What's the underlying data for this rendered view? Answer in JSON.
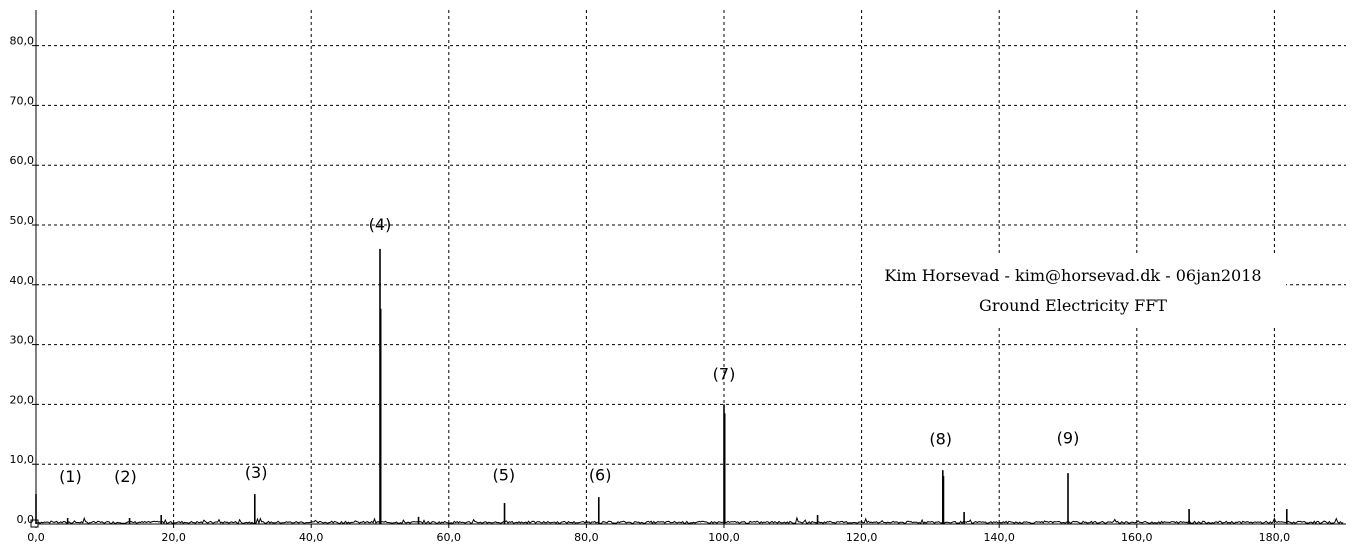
{
  "chart_data": {
    "type": "line",
    "title": "",
    "xlabel": "",
    "ylabel": "",
    "xlim": [
      0,
      190
    ],
    "ylim": [
      0,
      85
    ],
    "grid": true,
    "x_ticks": [
      0,
      20,
      40,
      60,
      80,
      100,
      120,
      140,
      160,
      180
    ],
    "y_ticks": [
      0,
      10,
      20,
      30,
      40,
      50,
      60,
      70,
      80
    ],
    "x_tick_labels": [
      "0,0",
      "20,0",
      "40,0",
      "60,0",
      "80,0",
      "100,0",
      "120,0",
      "140,0",
      "160,0",
      "180,0"
    ],
    "y_tick_labels": [
      "0,0",
      "10,0",
      "20,0",
      "30,0",
      "40,0",
      "50,0",
      "60,0",
      "70,0",
      "80,0"
    ],
    "spikes": [
      {
        "x": 0.0,
        "y": 5.0
      },
      {
        "x": 4.6,
        "y": 1.0
      },
      {
        "x": 13.6,
        "y": 1.0
      },
      {
        "x": 18.2,
        "y": 1.5
      },
      {
        "x": 31.8,
        "y": 5.0
      },
      {
        "x": 50.0,
        "y": 46.0
      },
      {
        "x": 50.1,
        "y": 36.0
      },
      {
        "x": 55.6,
        "y": 1.2
      },
      {
        "x": 68.1,
        "y": 3.5
      },
      {
        "x": 81.8,
        "y": 4.5
      },
      {
        "x": 100.0,
        "y": 20.0
      },
      {
        "x": 100.1,
        "y": 18.5
      },
      {
        "x": 113.6,
        "y": 1.5
      },
      {
        "x": 131.8,
        "y": 9.0
      },
      {
        "x": 131.9,
        "y": 8.0
      },
      {
        "x": 134.9,
        "y": 2.0
      },
      {
        "x": 150.0,
        "y": 8.5
      },
      {
        "x": 167.6,
        "y": 2.5
      },
      {
        "x": 181.8,
        "y": 2.5
      }
    ],
    "annotations": [
      {
        "label": "(1)",
        "x": 5.0,
        "y": 7.0
      },
      {
        "label": "(2)",
        "x": 13.0,
        "y": 7.0
      },
      {
        "label": "(3)",
        "x": 32.0,
        "y": 7.7
      },
      {
        "label": "(4)",
        "x": 50.0,
        "y": 49.2
      },
      {
        "label": "(5)",
        "x": 68.0,
        "y": 7.3
      },
      {
        "label": "(6)",
        "x": 82.0,
        "y": 7.3
      },
      {
        "label": "(7)",
        "x": 100.0,
        "y": 24.2
      },
      {
        "label": "(8)",
        "x": 131.5,
        "y": 13.3
      },
      {
        "label": "(9)",
        "x": 150.0,
        "y": 13.5
      }
    ],
    "credit_lines": [
      "Kim Horsevad - kim@horsevad.dk - 06jan2018",
      "Ground Electricity FFT"
    ]
  }
}
